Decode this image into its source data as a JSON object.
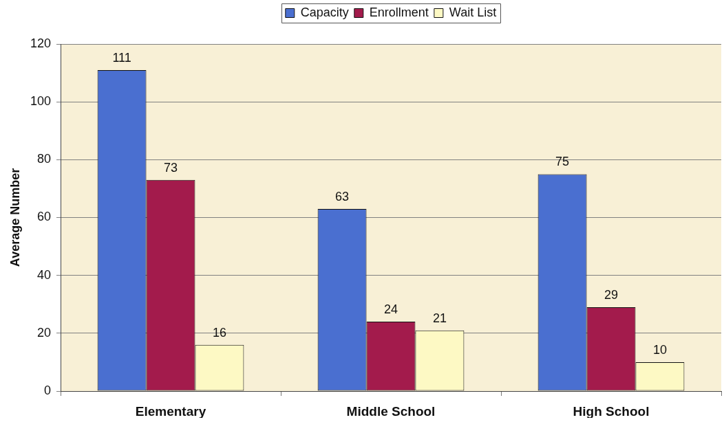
{
  "chart_data": {
    "type": "bar",
    "categories": [
      "Elementary",
      "Middle School",
      "High School"
    ],
    "series": [
      {
        "name": "Capacity",
        "color": "#4a6fd0",
        "values": [
          111,
          63,
          75
        ]
      },
      {
        "name": "Enrollment",
        "color": "#a31b4c",
        "values": [
          73,
          24,
          29
        ]
      },
      {
        "name": "Wait List",
        "color": "#fdf9c4",
        "values": [
          16,
          21,
          10
        ]
      }
    ],
    "ylabel": "Average Number",
    "ylim": [
      0,
      120
    ],
    "yticks": [
      0,
      20,
      40,
      60,
      80,
      100,
      120
    ],
    "grid": "y",
    "legend": "top",
    "data_labels": true
  }
}
